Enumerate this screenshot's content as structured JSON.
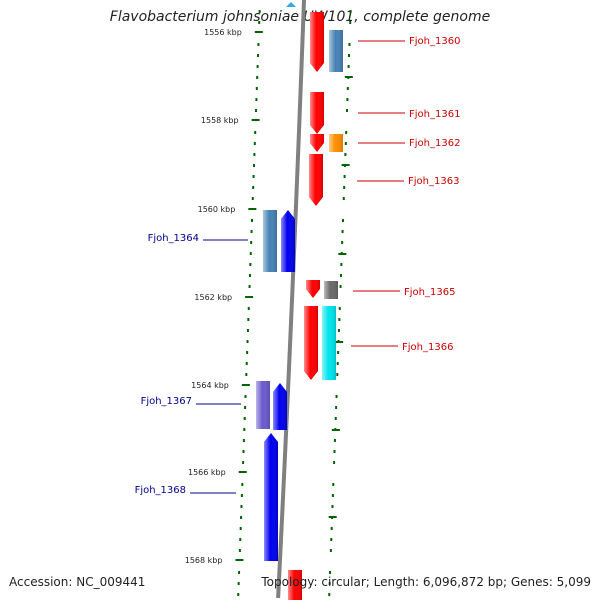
{
  "title": "Flavobacterium johnsoniae UW101, complete genome",
  "footer": {
    "accession": "Accession: NC_009441",
    "topology": "Topology: circular; Length: 6,096,872 bp; Genes: 5,099"
  },
  "kbp_labels": [
    "1556 kbp",
    "1558 kbp",
    "1560 kbp",
    "1562 kbp",
    "1564 kbp",
    "1566 kbp",
    "1568 kbp"
  ],
  "colors": {
    "red": "#ff0000",
    "steelblue": "#4682b4",
    "orange": "#ff8c00",
    "blue": "#0000ee",
    "gray": "#696969",
    "cyan": "#00e5ee",
    "slateblue": "#6a5acd",
    "tick": "#006400",
    "label_right": "#cc0000",
    "label_left": "#00008b",
    "backbone": "#808080"
  },
  "genes": [
    {
      "label": "Fjoh_1360",
      "side": "right"
    },
    {
      "label": "Fjoh_1361",
      "side": "right"
    },
    {
      "label": "Fjoh_1362",
      "side": "right"
    },
    {
      "label": "Fjoh_1363",
      "side": "right"
    },
    {
      "label": "Fjoh_1364",
      "side": "left"
    },
    {
      "label": "Fjoh_1365",
      "side": "right"
    },
    {
      "label": "Fjoh_1366",
      "side": "right"
    },
    {
      "label": "Fjoh_1367",
      "side": "left"
    },
    {
      "label": "Fjoh_1368",
      "side": "left"
    }
  ]
}
